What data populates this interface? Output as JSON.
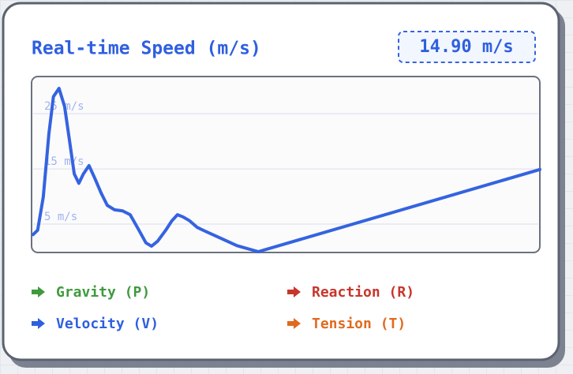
{
  "header": {
    "title": "Real-time Speed (m/s)",
    "readout": "14.90 m/s"
  },
  "chart_data": {
    "type": "line",
    "color": "#3563e0",
    "x": [
      0.3,
      1.2,
      2.3,
      3.4,
      4.3,
      5.4,
      6.5,
      7.5,
      8.4,
      9.3,
      10.2,
      11.3,
      12.4,
      13.7,
      14.9,
      16.3,
      17.9,
      19.4,
      21.0,
      22.5,
      23.6,
      24.8,
      26.4,
      27.6,
      28.7,
      29.8,
      31.1,
      32.6,
      34.2,
      37.3,
      40.4,
      44.6,
      100
    ],
    "values": [
      3.1,
      3.9,
      9.9,
      21.3,
      28.1,
      29.6,
      26.3,
      19.9,
      14.1,
      12.4,
      14.1,
      15.6,
      13.4,
      10.6,
      8.4,
      7.6,
      7.4,
      6.7,
      4.1,
      1.6,
      1.0,
      1.9,
      3.9,
      5.6,
      6.7,
      6.3,
      5.6,
      4.4,
      3.7,
      2.4,
      1.1,
      0,
      14.9
    ],
    "xlim": [
      0,
      100
    ],
    "ylim": [
      0,
      31.6
    ],
    "yticks": [
      {
        "value": 5,
        "label": "5 m/s"
      },
      {
        "value": 15,
        "label": "15 m/s"
      },
      {
        "value": 25,
        "label": "25 m/s"
      }
    ],
    "grid": true
  },
  "legend": {
    "items": [
      {
        "label": "Gravity (P)",
        "color": "#3f9a3f"
      },
      {
        "label": "Reaction (R)",
        "color": "#c7362b"
      },
      {
        "label": "Velocity (V)",
        "color": "#2f5fe0"
      },
      {
        "label": "Tension (T)",
        "color": "#e06a20"
      }
    ]
  }
}
